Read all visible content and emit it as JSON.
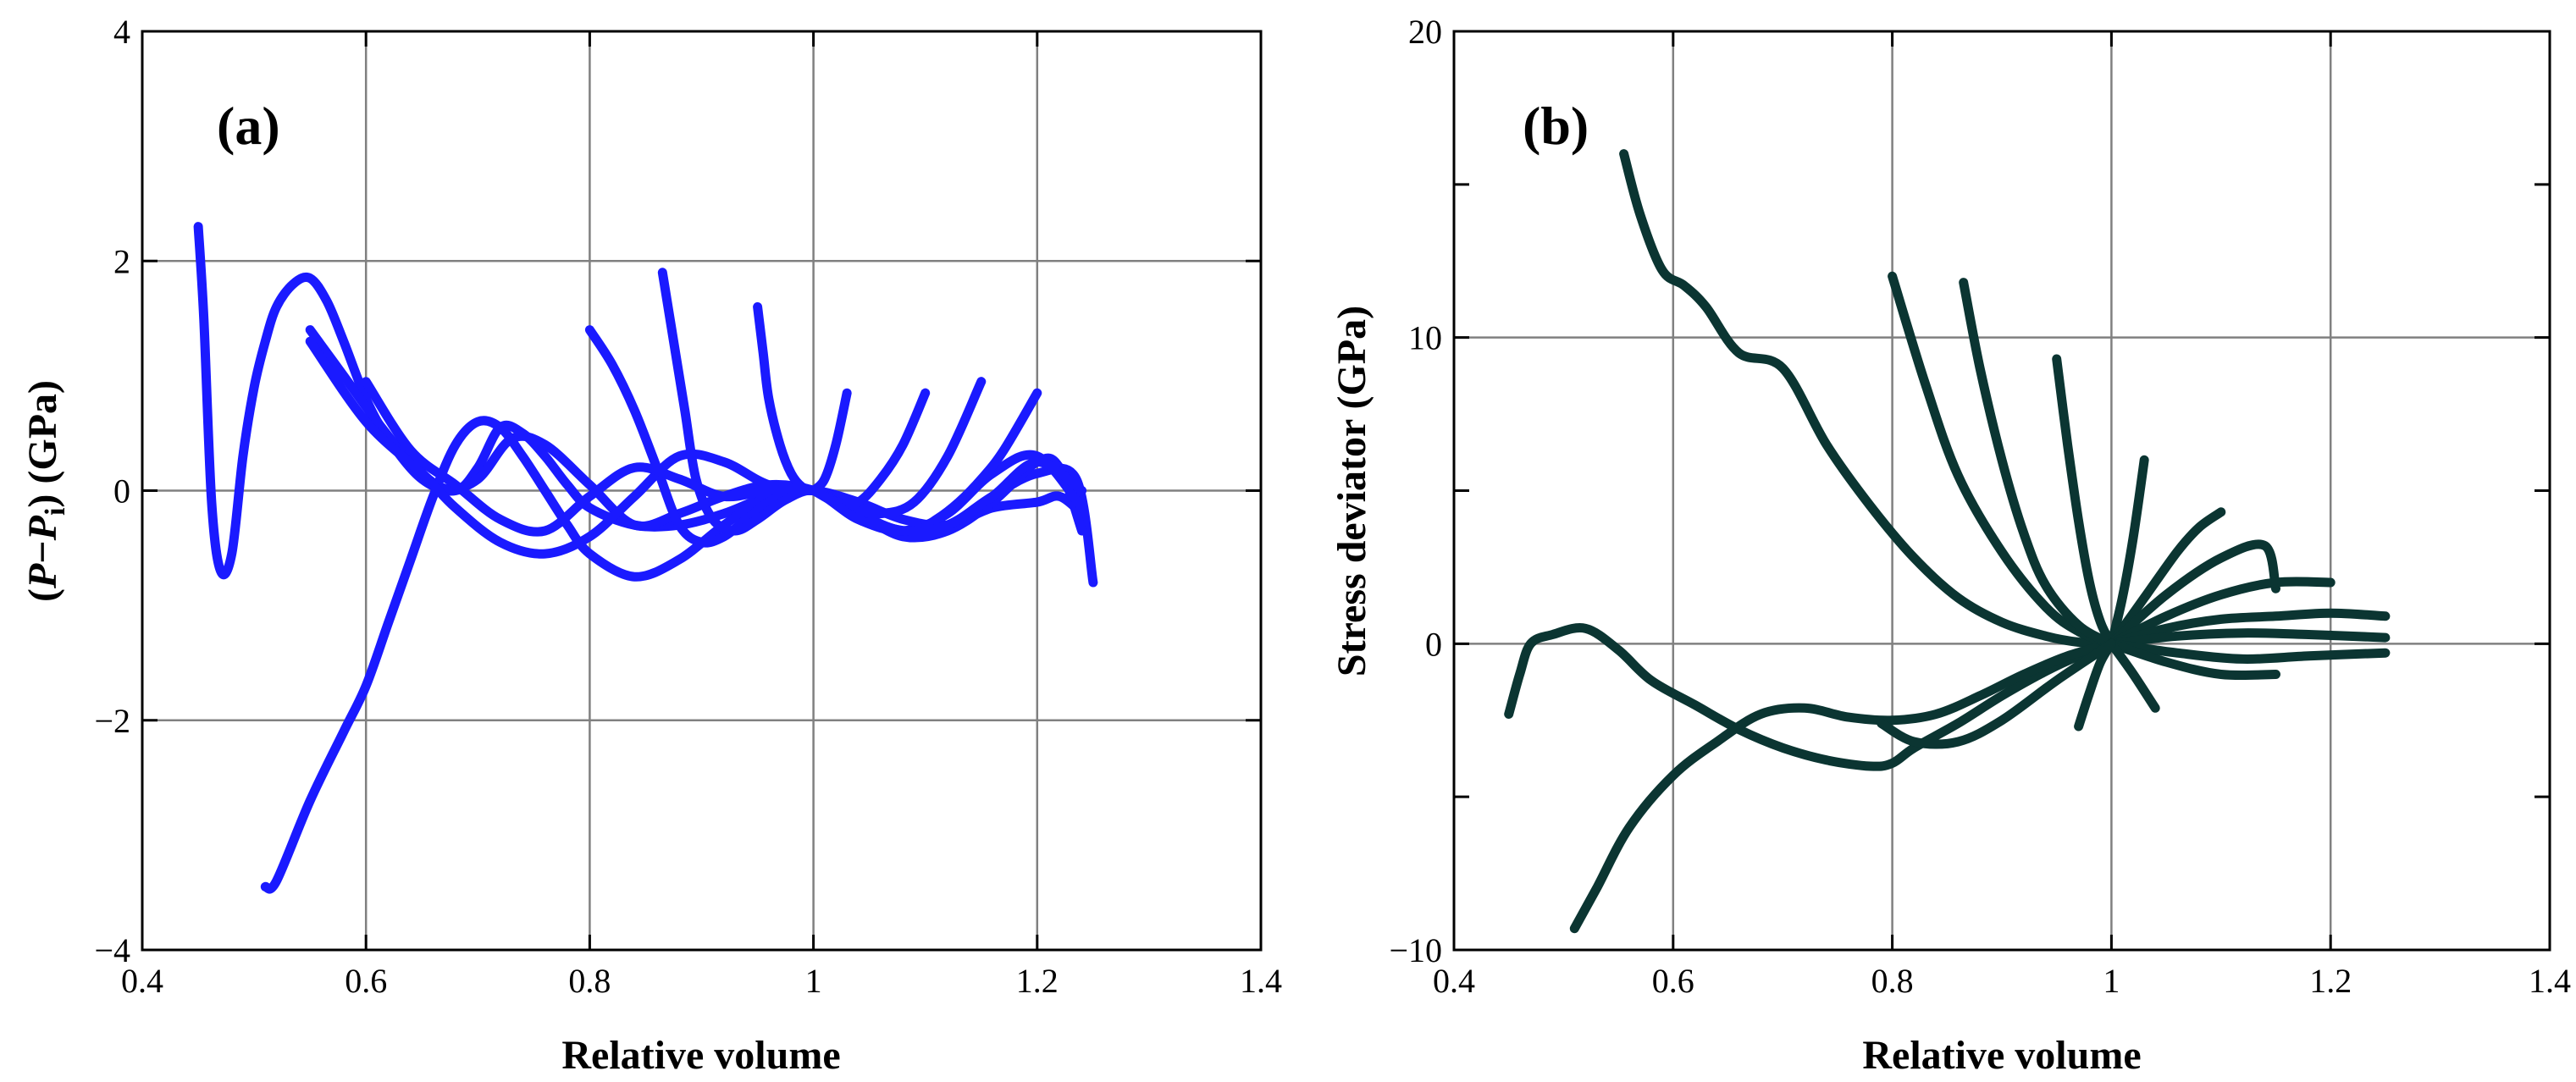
{
  "chart_data": [
    {
      "type": "line",
      "panel_label": "(a)",
      "xlabel": "Relative volume",
      "ylabel": {
        "pre": "(",
        "italic1": "P",
        "dash": "−",
        "italic2": "P",
        "sub": "i",
        "post": ") (GPa)"
      },
      "xlim": [
        0.4,
        1.4
      ],
      "ylim": [
        -4,
        4
      ],
      "xticks": [
        0.4,
        0.6,
        0.8,
        1,
        1.2,
        1.4
      ],
      "xtick_labels": [
        "0.4",
        "0.6",
        "0.8",
        "1",
        "1.2",
        "1.4"
      ],
      "yticks": [
        -4,
        -2,
        0,
        2,
        4
      ],
      "ytick_labels": [
        "−4",
        "−2",
        "0",
        "2",
        "4"
      ],
      "grid": true,
      "color": "#1a1aff",
      "series": [
        {
          "name": "a1",
          "x": [
            0.45,
            0.455,
            0.462,
            0.47,
            0.48,
            0.49,
            0.5,
            0.51,
            0.52,
            0.535,
            0.55,
            0.565,
            0.58,
            0.6,
            0.62,
            0.65,
            0.68,
            0.7,
            0.72,
            0.74,
            0.76,
            0.78,
            0.8,
            0.84,
            0.88,
            0.92,
            0.96,
            1.0,
            1.04,
            1.08,
            1.12,
            1.16,
            1.2,
            1.22,
            1.24
          ],
          "y": [
            2.3,
            1.5,
            -0.1,
            -0.7,
            -0.55,
            0.3,
            0.9,
            1.3,
            1.6,
            1.8,
            1.85,
            1.65,
            1.3,
            0.8,
            0.45,
            0.1,
            0.0,
            0.2,
            0.55,
            0.5,
            0.3,
            0.05,
            -0.15,
            -0.3,
            -0.3,
            -0.2,
            -0.05,
            0.0,
            -0.1,
            -0.25,
            -0.3,
            -0.15,
            -0.1,
            -0.05,
            -0.2
          ]
        },
        {
          "name": "a2",
          "x": [
            0.55,
            0.58,
            0.61,
            0.64,
            0.67,
            0.7,
            0.73,
            0.76,
            0.8,
            0.84,
            0.88,
            0.92,
            0.96,
            1.0,
            1.04,
            1.08,
            1.12,
            1.16,
            1.2,
            1.235,
            1.25
          ],
          "y": [
            1.4,
            1.0,
            0.6,
            0.25,
            0.02,
            0.1,
            0.45,
            0.4,
            0.05,
            -0.3,
            -0.2,
            -0.05,
            0.05,
            0.0,
            -0.2,
            -0.35,
            -0.3,
            -0.05,
            0.15,
            0.1,
            -0.8
          ]
        },
        {
          "name": "a3",
          "x": [
            0.51,
            0.52,
            0.55,
            0.58,
            0.6,
            0.62,
            0.64,
            0.66,
            0.68,
            0.7,
            0.72,
            0.74,
            0.76,
            0.78,
            0.8,
            0.84,
            0.88,
            0.92,
            0.96,
            1.0,
            1.04,
            1.08,
            1.12,
            1.16,
            1.2,
            1.22,
            1.24
          ],
          "y": [
            -3.45,
            -3.4,
            -2.7,
            -2.1,
            -1.7,
            -1.15,
            -0.6,
            -0.05,
            0.4,
            0.6,
            0.55,
            0.3,
            0.0,
            -0.3,
            -0.55,
            -0.75,
            -0.6,
            -0.3,
            -0.05,
            0.0,
            -0.2,
            -0.4,
            -0.35,
            -0.1,
            0.25,
            0.2,
            -0.35
          ]
        },
        {
          "name": "a4",
          "x": [
            0.55,
            0.6,
            0.65,
            0.68,
            0.72,
            0.76,
            0.8,
            0.84,
            0.88,
            0.92,
            0.96,
            1.0,
            1.04,
            1.08,
            1.12,
            1.16,
            1.2,
            1.24
          ],
          "y": [
            1.3,
            0.6,
            0.15,
            -0.15,
            -0.45,
            -0.55,
            -0.4,
            -0.05,
            0.3,
            0.25,
            0.05,
            0.0,
            -0.25,
            -0.35,
            -0.2,
            0.15,
            0.3,
            -0.15
          ]
        },
        {
          "name": "a5",
          "x": [
            0.8,
            0.82,
            0.84,
            0.86,
            0.88,
            0.9,
            0.92,
            0.94,
            0.96,
            0.98,
            1.0,
            1.03,
            1.06,
            1.09,
            1.11,
            1.13,
            1.15,
            1.17,
            1.2
          ],
          "y": [
            1.4,
            1.1,
            0.7,
            0.2,
            -0.3,
            -0.45,
            -0.4,
            -0.25,
            -0.1,
            -0.02,
            0.0,
            -0.15,
            -0.3,
            -0.35,
            -0.25,
            -0.1,
            0.1,
            0.35,
            0.85
          ]
        },
        {
          "name": "a6",
          "x": [
            0.865,
            0.875,
            0.885,
            0.895,
            0.91,
            0.93,
            0.95,
            0.975,
            1.0,
            1.03,
            1.06,
            1.09,
            1.12,
            1.15
          ],
          "y": [
            1.9,
            1.3,
            0.7,
            0.1,
            -0.25,
            -0.35,
            -0.25,
            -0.08,
            0.0,
            -0.15,
            -0.2,
            -0.1,
            0.3,
            0.95
          ]
        },
        {
          "name": "a7",
          "x": [
            0.95,
            0.955,
            0.96,
            0.97,
            0.98,
            0.99,
            1.0,
            1.02,
            1.04,
            1.06,
            1.08,
            1.1
          ],
          "y": [
            1.6,
            1.2,
            0.8,
            0.4,
            0.15,
            0.03,
            0.0,
            -0.1,
            -0.1,
            0.1,
            0.4,
            0.85
          ]
        },
        {
          "name": "a8",
          "x": [
            1.0,
            1.01,
            1.02,
            1.03
          ],
          "y": [
            0.0,
            0.1,
            0.4,
            0.85
          ]
        },
        {
          "name": "a9",
          "x": [
            0.6,
            0.64,
            0.68,
            0.72,
            0.76,
            0.8,
            0.84,
            0.88,
            0.92,
            0.96,
            1.0,
            1.04,
            1.08,
            1.12,
            1.16,
            1.2,
            1.24
          ],
          "y": [
            0.95,
            0.35,
            0.05,
            -0.25,
            -0.35,
            -0.05,
            0.2,
            0.1,
            -0.05,
            0.0,
            0.0,
            -0.25,
            -0.35,
            -0.3,
            -0.05,
            0.25,
            0.0
          ]
        }
      ]
    },
    {
      "type": "line",
      "panel_label": "(b)",
      "xlabel": "Relative volume",
      "ylabel": "Stress deviator (GPa)",
      "xlim": [
        0.4,
        1.4
      ],
      "ylim": [
        -10,
        20
      ],
      "xticks": [
        0.4,
        0.6,
        0.8,
        1,
        1.2,
        1.4
      ],
      "xtick_labels": [
        "0.4",
        "0.6",
        "0.8",
        "1",
        "1.2",
        "1.4"
      ],
      "yticks": [
        -10,
        -5,
        0,
        5,
        10,
        15,
        20
      ],
      "ytick_labels": [
        "−10",
        "",
        "0",
        "",
        "10",
        "",
        "20"
      ],
      "grid": true,
      "color": "#0b3532",
      "series": [
        {
          "name": "b1",
          "x": [
            0.555,
            0.57,
            0.59,
            0.61,
            0.63,
            0.66,
            0.7,
            0.74,
            0.78,
            0.82,
            0.86,
            0.9,
            0.94,
            0.97,
            1.0
          ],
          "y": [
            16.0,
            14.0,
            12.2,
            11.7,
            11.0,
            9.5,
            9.0,
            6.5,
            4.5,
            2.8,
            1.5,
            0.7,
            0.25,
            0.05,
            0.0
          ]
        },
        {
          "name": "b2",
          "x": [
            0.45,
            0.46,
            0.47,
            0.49,
            0.52,
            0.55,
            0.58,
            0.62,
            0.66,
            0.7,
            0.74,
            0.78,
            0.8,
            0.82,
            0.86,
            0.9,
            0.94,
            0.97,
            1.0
          ],
          "y": [
            -2.3,
            -1.0,
            0.0,
            0.3,
            0.5,
            -0.2,
            -1.2,
            -2.0,
            -2.8,
            -3.4,
            -3.8,
            -4.0,
            -3.9,
            -3.4,
            -2.6,
            -1.7,
            -0.9,
            -0.4,
            0.0
          ]
        },
        {
          "name": "b3",
          "x": [
            0.51,
            0.53,
            0.56,
            0.6,
            0.64,
            0.68,
            0.72,
            0.76,
            0.8,
            0.84,
            0.88,
            0.92,
            0.96,
            1.0
          ],
          "y": [
            -9.3,
            -8.0,
            -6.0,
            -4.3,
            -3.2,
            -2.3,
            -2.1,
            -2.4,
            -2.5,
            -2.3,
            -1.7,
            -1.0,
            -0.4,
            0.0
          ]
        },
        {
          "name": "b4",
          "x": [
            0.8,
            0.83,
            0.86,
            0.9,
            0.94,
            0.97,
            1.0
          ],
          "y": [
            12.0,
            8.5,
            5.5,
            3.0,
            1.2,
            0.4,
            0.0
          ]
        },
        {
          "name": "b5",
          "x": [
            0.865,
            0.88,
            0.9,
            0.92,
            0.94,
            0.97,
            1.0
          ],
          "y": [
            11.8,
            9.0,
            6.0,
            3.6,
            1.9,
            0.6,
            0.0
          ]
        },
        {
          "name": "b6",
          "x": [
            0.95,
            0.96,
            0.97,
            0.98,
            0.99,
            1.0
          ],
          "y": [
            9.3,
            6.5,
            4.0,
            2.0,
            0.7,
            0.0
          ]
        },
        {
          "name": "b7",
          "x": [
            1.0,
            1.01,
            1.02,
            1.03
          ],
          "y": [
            0.0,
            1.5,
            3.5,
            6.0
          ]
        },
        {
          "name": "b8",
          "x": [
            1.0,
            1.03,
            1.06,
            1.08,
            1.1
          ],
          "y": [
            0.0,
            1.5,
            3.0,
            3.8,
            4.3
          ]
        },
        {
          "name": "b9",
          "x": [
            1.0,
            1.05,
            1.1,
            1.14,
            1.15
          ],
          "y": [
            0.0,
            1.6,
            2.8,
            3.2,
            1.8
          ]
        },
        {
          "name": "b10",
          "x": [
            1.0,
            1.05,
            1.1,
            1.15,
            1.2
          ],
          "y": [
            0.0,
            0.9,
            1.6,
            2.0,
            2.0
          ]
        },
        {
          "name": "b11",
          "x": [
            1.0,
            1.05,
            1.1,
            1.15,
            1.2,
            1.25
          ],
          "y": [
            0.0,
            0.5,
            0.8,
            0.9,
            1.0,
            0.9
          ]
        },
        {
          "name": "b12",
          "x": [
            1.0,
            1.06,
            1.12,
            1.18,
            1.25
          ],
          "y": [
            0.0,
            0.25,
            0.35,
            0.3,
            0.2
          ]
        },
        {
          "name": "b13",
          "x": [
            1.0,
            1.06,
            1.12,
            1.18,
            1.25
          ],
          "y": [
            0.0,
            -0.3,
            -0.5,
            -0.4,
            -0.3
          ]
        },
        {
          "name": "b14",
          "x": [
            1.0,
            1.05,
            1.1,
            1.15
          ],
          "y": [
            0.0,
            -0.6,
            -1.0,
            -1.0
          ]
        },
        {
          "name": "b15",
          "x": [
            1.0,
            1.02,
            1.04
          ],
          "y": [
            0.0,
            -1.0,
            -2.1
          ]
        },
        {
          "name": "b16",
          "x": [
            0.79,
            0.82,
            0.86,
            0.9,
            0.95,
            1.0
          ],
          "y": [
            -2.6,
            -3.2,
            -3.2,
            -2.5,
            -1.2,
            0.0
          ]
        },
        {
          "name": "b17",
          "x": [
            0.97,
            0.98,
            0.99,
            1.0
          ],
          "y": [
            -2.7,
            -1.6,
            -0.6,
            0.0
          ]
        }
      ]
    }
  ]
}
